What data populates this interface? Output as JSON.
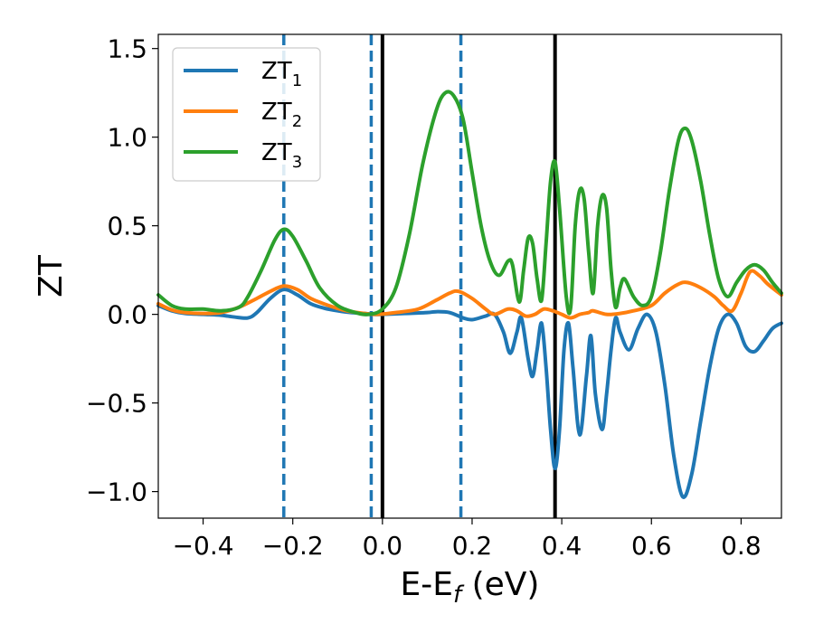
{
  "chart_data": {
    "type": "line",
    "xlabel": "E-E",
    "xlabel_sub": "f",
    "xlabel_unit": " (eV)",
    "ylabel": "ZT",
    "xlim": [
      -0.5,
      0.89
    ],
    "ylim": [
      -1.15,
      1.58
    ],
    "xticks": [
      -0.4,
      -0.2,
      0.0,
      0.2,
      0.4,
      0.6,
      0.8
    ],
    "xtick_labels": [
      "−0.4",
      "−0.2",
      "0.0",
      "0.2",
      "0.4",
      "0.6",
      "0.8"
    ],
    "yticks": [
      -1.0,
      -0.5,
      0.0,
      0.5,
      1.0,
      1.5
    ],
    "ytick_labels": [
      "−1.0",
      "−0.5",
      "0.0",
      "0.5",
      "1.0",
      "1.5"
    ],
    "grid": false,
    "legend_position": "top-left",
    "vlines": [
      {
        "x": -0.22,
        "style": "dashed",
        "color": "#1f77b4"
      },
      {
        "x": -0.025,
        "style": "dashed",
        "color": "#1f77b4"
      },
      {
        "x": 0.0,
        "style": "solid",
        "color": "#000000"
      },
      {
        "x": 0.175,
        "style": "dashed",
        "color": "#1f77b4"
      },
      {
        "x": 0.385,
        "style": "solid",
        "color": "#000000"
      }
    ],
    "series": [
      {
        "name": "ZT",
        "name_sub": "1",
        "color": "#1f77b4",
        "points": [
          [
            -0.5,
            0.05
          ],
          [
            -0.47,
            0.02
          ],
          [
            -0.44,
            0.005
          ],
          [
            -0.4,
            0.0
          ],
          [
            -0.36,
            -0.005
          ],
          [
            -0.33,
            -0.015
          ],
          [
            -0.3,
            -0.02
          ],
          [
            -0.28,
            0.01
          ],
          [
            -0.25,
            0.09
          ],
          [
            -0.22,
            0.14
          ],
          [
            -0.19,
            0.11
          ],
          [
            -0.16,
            0.06
          ],
          [
            -0.13,
            0.035
          ],
          [
            -0.1,
            0.02
          ],
          [
            -0.07,
            0.01
          ],
          [
            -0.04,
            0.005
          ],
          [
            -0.02,
            0.0
          ],
          [
            0.0,
            0.0
          ],
          [
            0.05,
            0.005
          ],
          [
            0.1,
            0.01
          ],
          [
            0.12,
            0.015
          ],
          [
            0.15,
            0.01
          ],
          [
            0.18,
            -0.02
          ],
          [
            0.2,
            -0.03
          ],
          [
            0.23,
            -0.01
          ],
          [
            0.25,
            0.0
          ],
          [
            0.27,
            -0.1
          ],
          [
            0.285,
            -0.22
          ],
          [
            0.3,
            -0.1
          ],
          [
            0.31,
            -0.02
          ],
          [
            0.325,
            -0.25
          ],
          [
            0.335,
            -0.35
          ],
          [
            0.345,
            -0.2
          ],
          [
            0.355,
            -0.05
          ],
          [
            0.365,
            -0.3
          ],
          [
            0.375,
            -0.65
          ],
          [
            0.385,
            -0.87
          ],
          [
            0.395,
            -0.65
          ],
          [
            0.405,
            -0.2
          ],
          [
            0.415,
            -0.05
          ],
          [
            0.425,
            -0.3
          ],
          [
            0.44,
            -0.68
          ],
          [
            0.455,
            -0.35
          ],
          [
            0.465,
            -0.12
          ],
          [
            0.475,
            -0.45
          ],
          [
            0.49,
            -0.65
          ],
          [
            0.5,
            -0.45
          ],
          [
            0.51,
            -0.2
          ],
          [
            0.52,
            -0.02
          ],
          [
            0.53,
            -0.1
          ],
          [
            0.55,
            -0.2
          ],
          [
            0.57,
            -0.08
          ],
          [
            0.59,
            0.0
          ],
          [
            0.61,
            -0.1
          ],
          [
            0.63,
            -0.4
          ],
          [
            0.65,
            -0.8
          ],
          [
            0.67,
            -1.03
          ],
          [
            0.69,
            -0.9
          ],
          [
            0.71,
            -0.6
          ],
          [
            0.73,
            -0.3
          ],
          [
            0.75,
            -0.08
          ],
          [
            0.77,
            0.0
          ],
          [
            0.79,
            -0.05
          ],
          [
            0.81,
            -0.18
          ],
          [
            0.83,
            -0.21
          ],
          [
            0.85,
            -0.15
          ],
          [
            0.87,
            -0.08
          ],
          [
            0.89,
            -0.05
          ]
        ]
      },
      {
        "name": "ZT",
        "name_sub": "2",
        "color": "#ff7f0e",
        "points": [
          [
            -0.5,
            0.06
          ],
          [
            -0.47,
            0.025
          ],
          [
            -0.44,
            0.01
          ],
          [
            -0.4,
            0.005
          ],
          [
            -0.36,
            0.01
          ],
          [
            -0.32,
            0.04
          ],
          [
            -0.28,
            0.09
          ],
          [
            -0.25,
            0.13
          ],
          [
            -0.22,
            0.16
          ],
          [
            -0.19,
            0.14
          ],
          [
            -0.16,
            0.09
          ],
          [
            -0.12,
            0.05
          ],
          [
            -0.08,
            0.02
          ],
          [
            -0.04,
            0.005
          ],
          [
            -0.01,
            0.0
          ],
          [
            0.03,
            0.01
          ],
          [
            0.08,
            0.03
          ],
          [
            0.12,
            0.08
          ],
          [
            0.15,
            0.12
          ],
          [
            0.17,
            0.13
          ],
          [
            0.2,
            0.09
          ],
          [
            0.23,
            0.03
          ],
          [
            0.25,
            0.0
          ],
          [
            0.28,
            0.03
          ],
          [
            0.3,
            0.02
          ],
          [
            0.32,
            -0.01
          ],
          [
            0.34,
            0.0
          ],
          [
            0.36,
            0.03
          ],
          [
            0.38,
            0.02
          ],
          [
            0.4,
            0.0
          ],
          [
            0.42,
            -0.02
          ],
          [
            0.44,
            0.0
          ],
          [
            0.46,
            0.01
          ],
          [
            0.47,
            0.02
          ],
          [
            0.5,
            0.0
          ],
          [
            0.53,
            0.005
          ],
          [
            0.56,
            0.02
          ],
          [
            0.6,
            0.05
          ],
          [
            0.63,
            0.12
          ],
          [
            0.66,
            0.17
          ],
          [
            0.68,
            0.18
          ],
          [
            0.71,
            0.15
          ],
          [
            0.74,
            0.1
          ],
          [
            0.76,
            0.05
          ],
          [
            0.78,
            0.02
          ],
          [
            0.8,
            0.12
          ],
          [
            0.82,
            0.24
          ],
          [
            0.84,
            0.22
          ],
          [
            0.86,
            0.17
          ],
          [
            0.89,
            0.11
          ]
        ]
      },
      {
        "name": "ZT",
        "name_sub": "3",
        "color": "#2ca02c",
        "points": [
          [
            -0.5,
            0.11
          ],
          [
            -0.47,
            0.05
          ],
          [
            -0.44,
            0.03
          ],
          [
            -0.4,
            0.03
          ],
          [
            -0.36,
            0.02
          ],
          [
            -0.32,
            0.04
          ],
          [
            -0.3,
            0.1
          ],
          [
            -0.27,
            0.25
          ],
          [
            -0.24,
            0.42
          ],
          [
            -0.22,
            0.48
          ],
          [
            -0.2,
            0.44
          ],
          [
            -0.17,
            0.3
          ],
          [
            -0.14,
            0.15
          ],
          [
            -0.1,
            0.05
          ],
          [
            -0.06,
            0.01
          ],
          [
            -0.03,
            0.0
          ],
          [
            0.0,
            0.03
          ],
          [
            0.03,
            0.15
          ],
          [
            0.06,
            0.45
          ],
          [
            0.09,
            0.85
          ],
          [
            0.12,
            1.15
          ],
          [
            0.14,
            1.25
          ],
          [
            0.16,
            1.23
          ],
          [
            0.18,
            1.1
          ],
          [
            0.2,
            0.8
          ],
          [
            0.22,
            0.5
          ],
          [
            0.24,
            0.3
          ],
          [
            0.26,
            0.22
          ],
          [
            0.28,
            0.3
          ],
          [
            0.29,
            0.28
          ],
          [
            0.305,
            0.07
          ],
          [
            0.315,
            0.25
          ],
          [
            0.325,
            0.43
          ],
          [
            0.335,
            0.4
          ],
          [
            0.345,
            0.2
          ],
          [
            0.355,
            0.08
          ],
          [
            0.365,
            0.4
          ],
          [
            0.375,
            0.75
          ],
          [
            0.385,
            0.86
          ],
          [
            0.395,
            0.6
          ],
          [
            0.41,
            0.1
          ],
          [
            0.42,
            0.04
          ],
          [
            0.43,
            0.5
          ],
          [
            0.44,
            0.7
          ],
          [
            0.45,
            0.65
          ],
          [
            0.46,
            0.35
          ],
          [
            0.47,
            0.12
          ],
          [
            0.48,
            0.5
          ],
          [
            0.49,
            0.67
          ],
          [
            0.5,
            0.6
          ],
          [
            0.51,
            0.25
          ],
          [
            0.52,
            0.04
          ],
          [
            0.53,
            0.15
          ],
          [
            0.54,
            0.2
          ],
          [
            0.56,
            0.1
          ],
          [
            0.58,
            0.05
          ],
          [
            0.6,
            0.1
          ],
          [
            0.62,
            0.35
          ],
          [
            0.64,
            0.7
          ],
          [
            0.66,
            0.98
          ],
          [
            0.675,
            1.05
          ],
          [
            0.69,
            0.98
          ],
          [
            0.71,
            0.75
          ],
          [
            0.73,
            0.45
          ],
          [
            0.75,
            0.2
          ],
          [
            0.77,
            0.1
          ],
          [
            0.79,
            0.18
          ],
          [
            0.81,
            0.25
          ],
          [
            0.83,
            0.28
          ],
          [
            0.85,
            0.25
          ],
          [
            0.87,
            0.18
          ],
          [
            0.89,
            0.12
          ]
        ]
      }
    ]
  }
}
